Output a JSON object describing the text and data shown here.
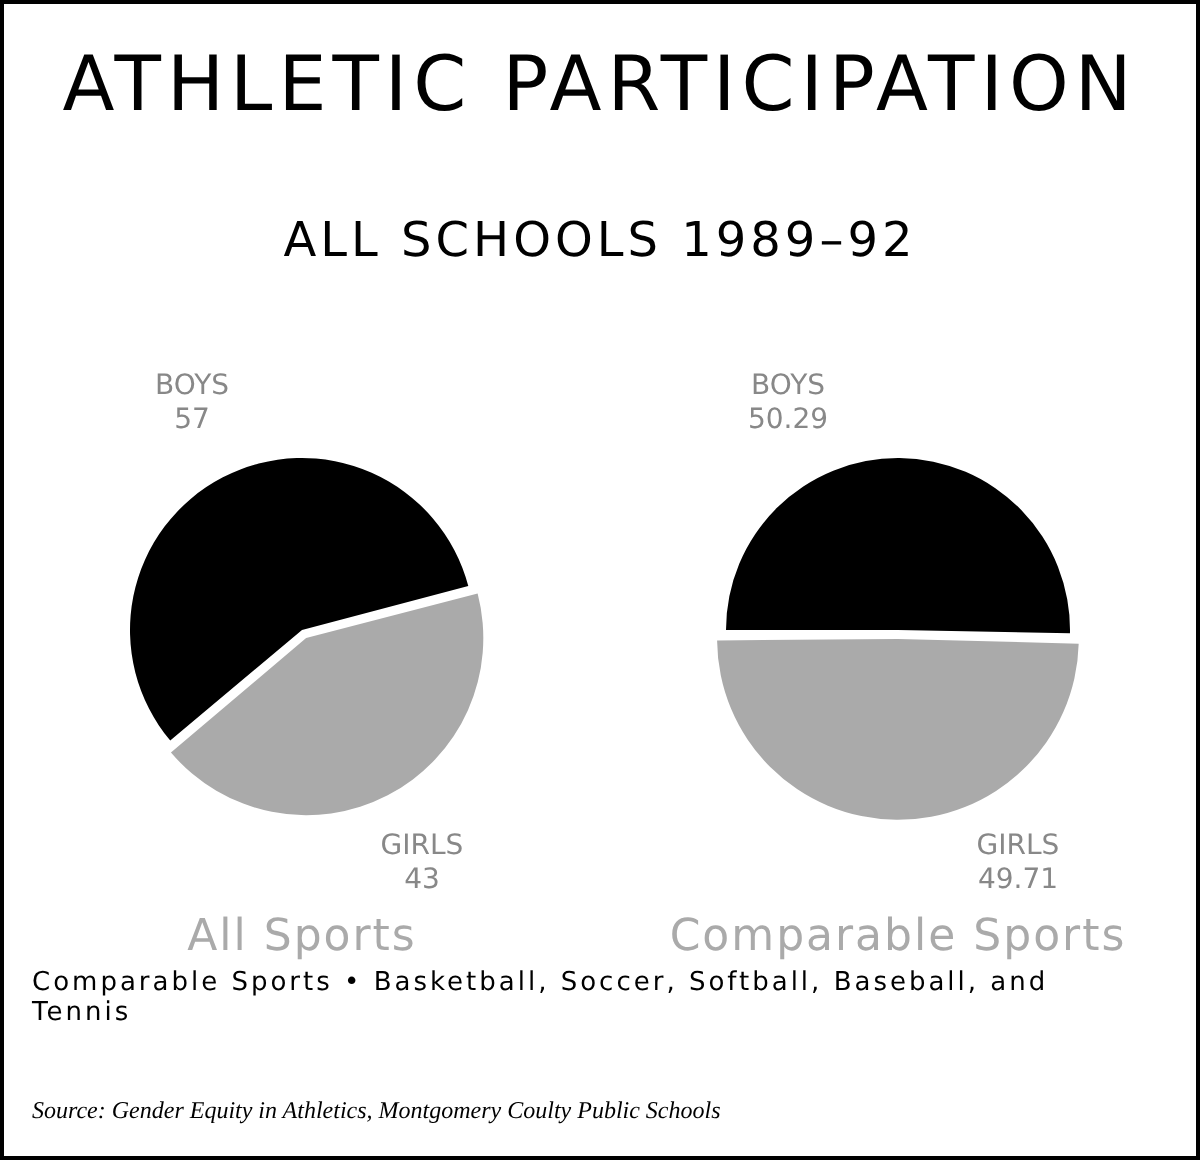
{
  "chart_data": [
    {
      "type": "pie",
      "title": "ATHLETIC PARTICIPATION",
      "subtitle": "ALL SCHOOLS 1989–92",
      "xlabel": "All Sports",
      "categories": [
        "BOYS",
        "GIRLS"
      ],
      "values": [
        57,
        43
      ],
      "colors": [
        "#000000",
        "#aaaaaa"
      ],
      "data_labels": true,
      "legend": false
    },
    {
      "type": "pie",
      "xlabel": "Comparable Sports",
      "categories": [
        "BOYS",
        "GIRLS"
      ],
      "values": [
        50.29,
        49.71
      ],
      "colors": [
        "#000000",
        "#aaaaaa"
      ],
      "data_labels": true,
      "legend": false,
      "annotations": [
        "Comparable Sports • Basketball, Soccer, Softball, Baseball, and Tennis",
        "Source: Gender Equity in Athletics, Montgomery Coulty Public Schools"
      ]
    }
  ]
}
